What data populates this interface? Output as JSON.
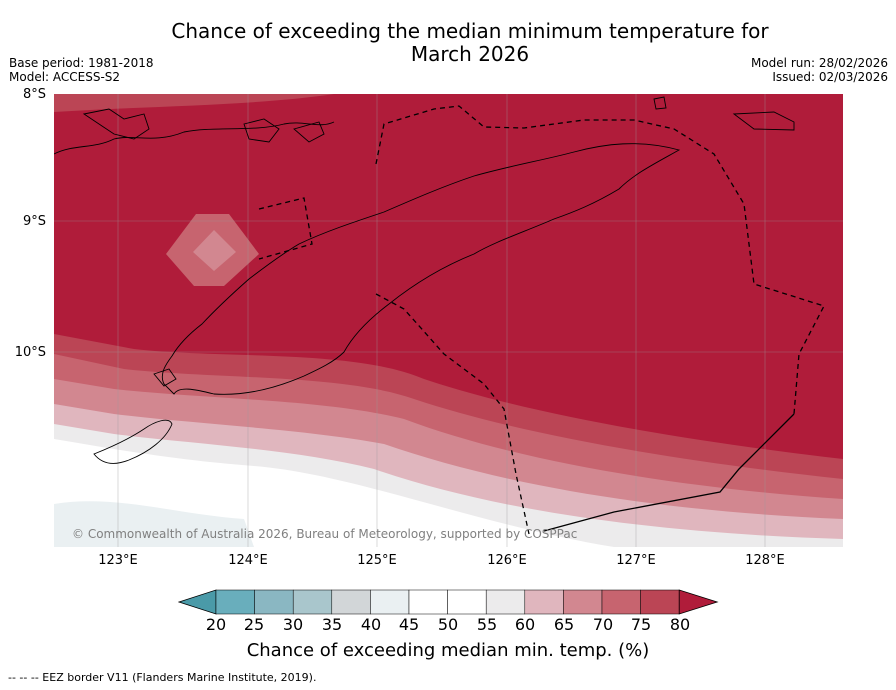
{
  "title": {
    "line1": "Chance of exceeding the median minimum temperature for",
    "line2": "March 2026"
  },
  "meta_left": {
    "base_period": "Base period: 1981-2018",
    "model": "Model: ACCESS-S2"
  },
  "meta_right": {
    "model_run": "Model run: 28/02/2026",
    "issued": "Issued: 02/03/2026"
  },
  "latitude_labels": [
    "8°S",
    "9°S",
    "10°S"
  ],
  "longitude_labels": [
    "123°E",
    "124°E",
    "125°E",
    "126°E",
    "127°E",
    "128°E"
  ],
  "copyright": "© Commonwealth of Australia 2026, Bureau of Meteorology, supported by COSPPac",
  "legend": {
    "ticks": [
      "20",
      "25",
      "30",
      "35",
      "40",
      "45",
      "50",
      "55",
      "60",
      "65",
      "70",
      "75",
      "80"
    ],
    "title": "Chance of exceeding median min. temp. (%)",
    "colors": [
      "#4a9aa8",
      "#69aebc",
      "#8ab7c2",
      "#a9c6cc",
      "#d2d6d8",
      "#eaf0f2",
      "#ffffff",
      "#ffffff",
      "#ecebec",
      "#e0b6be",
      "#d28790",
      "#c7646f",
      "#bb4555",
      "#b01c3a"
    ]
  },
  "footnote": "--  --  -- EEZ border V11 (Flanders Marine Institute, 2019)."
}
